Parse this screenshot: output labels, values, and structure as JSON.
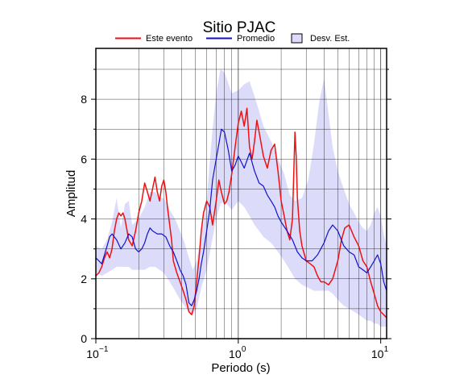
{
  "chart_data": {
    "type": "line",
    "title": "Sitio PJAC",
    "xlabel": "Periodo (s)",
    "ylabel": "Amplitud",
    "x_scale": "log",
    "xlim": [
      0.1,
      11
    ],
    "ylim": [
      0,
      9.7
    ],
    "grid": true,
    "legend_position": "top",
    "x_ticks": [
      {
        "base": "10",
        "exp": "−1",
        "value": 0.1
      },
      {
        "base": "10",
        "exp": "0",
        "value": 1
      },
      {
        "base": "10",
        "exp": "1",
        "value": 10
      }
    ],
    "y_ticks": [
      0,
      2,
      4,
      6,
      8
    ],
    "legend": [
      {
        "label": "Este evento",
        "kind": "line",
        "color": "#ee1111"
      },
      {
        "label": "Promedio",
        "kind": "line",
        "color": "#1111cc"
      },
      {
        "label": "Desv. Est.",
        "kind": "patch",
        "color": "#dcdcfa"
      }
    ],
    "series": [
      {
        "name": "Este evento",
        "color": "#ee1111",
        "x": [
          0.1,
          0.105,
          0.11,
          0.115,
          0.12,
          0.125,
          0.13,
          0.135,
          0.14,
          0.145,
          0.15,
          0.155,
          0.16,
          0.17,
          0.18,
          0.19,
          0.2,
          0.21,
          0.22,
          0.23,
          0.24,
          0.25,
          0.26,
          0.27,
          0.28,
          0.29,
          0.3,
          0.31,
          0.32,
          0.33,
          0.34,
          0.35,
          0.37,
          0.39,
          0.41,
          0.43,
          0.45,
          0.47,
          0.49,
          0.51,
          0.53,
          0.55,
          0.57,
          0.6,
          0.63,
          0.66,
          0.7,
          0.73,
          0.76,
          0.8,
          0.83,
          0.86,
          0.9,
          0.95,
          1.0,
          1.05,
          1.1,
          1.15,
          1.2,
          1.25,
          1.3,
          1.35,
          1.4,
          1.5,
          1.6,
          1.7,
          1.8,
          1.9,
          2.0,
          2.1,
          2.2,
          2.3,
          2.4,
          2.5,
          2.55,
          2.6,
          2.7,
          2.8,
          3.0,
          3.2,
          3.4,
          3.6,
          3.8,
          4.0,
          4.3,
          4.6,
          5.0,
          5.3,
          5.6,
          6.0,
          6.5,
          7.0,
          7.5,
          8.0,
          8.5,
          9.0,
          9.5,
          10.0,
          10.5,
          11.0
        ],
        "values": [
          2.1,
          2.2,
          2.4,
          2.7,
          2.9,
          2.7,
          3.0,
          3.6,
          4.0,
          4.2,
          4.1,
          4.2,
          4.0,
          3.3,
          3.1,
          3.6,
          4.2,
          4.6,
          5.2,
          4.9,
          4.6,
          5.0,
          5.4,
          4.9,
          4.6,
          5.1,
          5.3,
          4.9,
          4.3,
          3.8,
          3.3,
          2.6,
          2.2,
          1.9,
          1.6,
          1.3,
          0.9,
          0.8,
          1.1,
          1.9,
          2.7,
          3.6,
          4.2,
          4.6,
          4.4,
          3.8,
          4.6,
          5.3,
          4.9,
          4.5,
          4.6,
          4.9,
          5.5,
          6.4,
          7.2,
          7.6,
          7.1,
          7.7,
          6.4,
          6.0,
          6.6,
          7.3,
          6.9,
          6.1,
          5.7,
          6.3,
          6.5,
          5.6,
          4.6,
          4.1,
          3.6,
          3.3,
          4.0,
          6.9,
          6.1,
          4.7,
          3.6,
          3.1,
          2.6,
          2.5,
          2.4,
          2.1,
          1.9,
          1.9,
          1.8,
          2.0,
          2.6,
          3.3,
          3.7,
          3.8,
          3.4,
          3.1,
          2.6,
          2.4,
          1.9,
          1.5,
          1.1,
          0.9,
          0.8,
          0.7
        ]
      },
      {
        "name": "Promedio",
        "color": "#1111cc",
        "x": [
          0.1,
          0.105,
          0.11,
          0.115,
          0.12,
          0.125,
          0.13,
          0.14,
          0.15,
          0.16,
          0.17,
          0.18,
          0.19,
          0.2,
          0.21,
          0.22,
          0.23,
          0.24,
          0.25,
          0.27,
          0.29,
          0.31,
          0.33,
          0.35,
          0.37,
          0.39,
          0.41,
          0.43,
          0.45,
          0.47,
          0.49,
          0.51,
          0.53,
          0.55,
          0.57,
          0.6,
          0.63,
          0.66,
          0.7,
          0.73,
          0.76,
          0.8,
          0.85,
          0.9,
          0.95,
          1.0,
          1.05,
          1.1,
          1.2,
          1.3,
          1.4,
          1.5,
          1.6,
          1.7,
          1.8,
          1.9,
          2.0,
          2.2,
          2.4,
          2.6,
          2.8,
          3.0,
          3.3,
          3.6,
          4.0,
          4.3,
          4.6,
          5.0,
          5.5,
          6.0,
          6.5,
          7.0,
          7.5,
          8.0,
          8.5,
          9.0,
          9.5,
          10.0,
          10.5,
          11.0
        ],
        "values": [
          2.7,
          2.6,
          2.5,
          2.8,
          3.1,
          3.4,
          3.5,
          3.3,
          3.0,
          3.2,
          3.5,
          3.4,
          3.0,
          2.9,
          3.0,
          3.2,
          3.5,
          3.7,
          3.6,
          3.5,
          3.5,
          3.4,
          3.1,
          2.9,
          2.6,
          2.3,
          2.1,
          1.8,
          1.2,
          1.1,
          1.3,
          1.6,
          2.0,
          2.5,
          2.9,
          3.6,
          4.3,
          5.3,
          6.0,
          6.5,
          7.0,
          6.9,
          6.3,
          5.6,
          5.8,
          6.1,
          5.9,
          5.7,
          6.2,
          5.6,
          5.2,
          5.1,
          4.8,
          4.6,
          4.4,
          4.1,
          3.9,
          3.6,
          3.3,
          2.9,
          2.7,
          2.6,
          2.6,
          2.8,
          3.2,
          3.6,
          3.8,
          3.6,
          3.1,
          2.9,
          2.8,
          2.4,
          2.3,
          2.2,
          2.4,
          2.6,
          2.8,
          2.5,
          1.9,
          1.6
        ]
      },
      {
        "name": "Desv. Est.",
        "color": "#dcdcfa",
        "kind": "band",
        "x": [
          0.1,
          0.11,
          0.12,
          0.13,
          0.14,
          0.15,
          0.16,
          0.17,
          0.18,
          0.2,
          0.22,
          0.24,
          0.26,
          0.28,
          0.3,
          0.33,
          0.36,
          0.39,
          0.42,
          0.45,
          0.48,
          0.51,
          0.55,
          0.6,
          0.65,
          0.7,
          0.75,
          0.8,
          0.9,
          1.0,
          1.1,
          1.2,
          1.3,
          1.4,
          1.5,
          1.7,
          1.9,
          2.1,
          2.3,
          2.5,
          2.8,
          3.1,
          3.4,
          3.7,
          4.0,
          4.3,
          4.6,
          5.0,
          5.5,
          6.0,
          6.5,
          7.0,
          7.5,
          8.0,
          8.5,
          9.0,
          9.5,
          10.0,
          10.5,
          11.0
        ],
        "upper": [
          3.1,
          3.0,
          3.3,
          3.9,
          4.7,
          3.7,
          4.5,
          4.6,
          3.8,
          4.0,
          4.4,
          4.9,
          4.9,
          4.7,
          4.7,
          4.3,
          4.0,
          3.6,
          3.2,
          2.7,
          2.3,
          2.6,
          3.4,
          4.6,
          6.7,
          8.2,
          9.0,
          8.9,
          8.2,
          8.3,
          8.5,
          8.6,
          8.1,
          7.6,
          7.1,
          6.6,
          6.0,
          5.5,
          4.8,
          4.6,
          4.7,
          5.3,
          6.5,
          7.9,
          8.7,
          7.5,
          6.4,
          5.6,
          5.0,
          4.5,
          4.2,
          3.9,
          3.7,
          3.6,
          3.8,
          4.2,
          4.4,
          4.1,
          3.5,
          3.1
        ],
        "lower": [
          2.2,
          2.1,
          2.2,
          2.3,
          2.4,
          2.4,
          2.4,
          2.4,
          2.3,
          2.3,
          2.3,
          2.4,
          2.4,
          2.3,
          2.2,
          1.9,
          1.6,
          1.3,
          1.1,
          0.9,
          0.8,
          1.0,
          1.7,
          2.3,
          3.2,
          4.0,
          4.5,
          4.6,
          4.3,
          4.6,
          4.4,
          4.1,
          3.8,
          3.6,
          3.4,
          3.2,
          2.9,
          2.6,
          2.3,
          2.0,
          1.8,
          1.7,
          1.6,
          1.6,
          1.6,
          1.6,
          1.5,
          1.3,
          1.1,
          1.0,
          0.9,
          0.8,
          0.7,
          0.6,
          0.6,
          0.5,
          0.5,
          0.4,
          0.4,
          0.4
        ]
      }
    ]
  }
}
